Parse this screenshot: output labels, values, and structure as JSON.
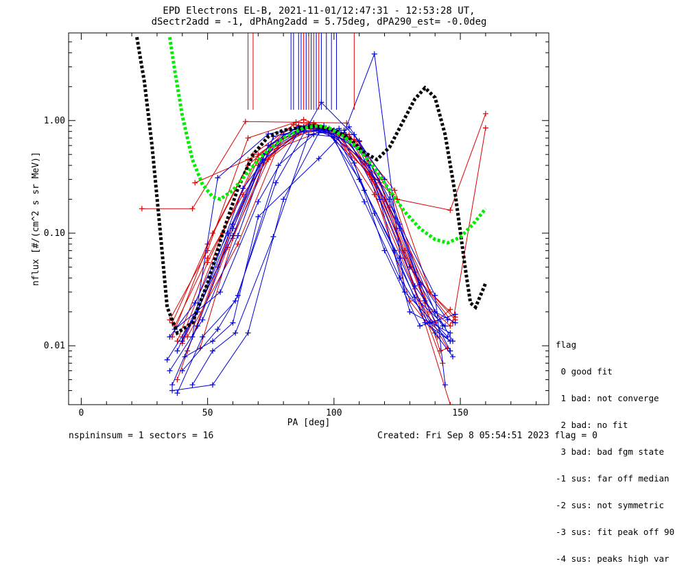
{
  "title_line1": "EPD Electrons EL-B, 2021-11-01/12:47:31 - 12:53:28 UT,",
  "title_line2": "dSectr2add = -1, dPhAng2add = 5.75deg, dPA290_est=  -0.0deg",
  "footer_left": "nspininsum =  1  sectors = 16",
  "footer_right": "Created: Fri Sep  8 05:54:51 2023   flag = 0",
  "legend": {
    "title": "flag",
    "items": [
      " 0 good fit",
      " 1 bad: not converge",
      " 2 bad: no fit",
      " 3 bad: bad fgm state",
      "-1 sus: far off median",
      "-2 sus: not symmetric",
      "-3 sus: fit peak off 90",
      "-4 sus: peaks high var"
    ]
  },
  "colors": {
    "red": "#dd0000",
    "blue": "#0000dd",
    "green": "#00ee00",
    "black": "#000000"
  },
  "chart_data": {
    "type": "line",
    "xlabel": "PA [deg]",
    "ylabel": "nflux [#/(cm^2 s sr MeV)]",
    "xlim": [
      -5,
      185
    ],
    "ylim": [
      0.003,
      6
    ],
    "yscale": "log",
    "xticks": [
      0,
      50,
      100,
      150
    ],
    "yticks": [
      0.01,
      0.1,
      1.0
    ],
    "ytick_labels": [
      "0.01",
      "0.10",
      "1.00"
    ],
    "series": [
      {
        "color": "red",
        "x": [
          24,
          44,
          65,
          105
        ],
        "y": [
          0.165,
          0.165,
          0.98,
          0.95
        ]
      },
      {
        "color": "red",
        "x": [
          45,
          66,
          96,
          125,
          146,
          160
        ],
        "y": [
          0.28,
          0.45,
          0.82,
          0.2,
          0.16,
          1.15
        ]
      },
      {
        "color": "red",
        "x": [
          35,
          50,
          66,
          88,
          110,
          130,
          147,
          160
        ],
        "y": [
          0.017,
          0.07,
          0.7,
          1.02,
          0.65,
          0.05,
          0.016,
          0.86
        ]
      },
      {
        "color": "red",
        "x": [
          36,
          52,
          68,
          84,
          96,
          112,
          128,
          140,
          146
        ],
        "y": [
          0.012,
          0.1,
          0.5,
          0.92,
          0.85,
          0.43,
          0.07,
          0.016,
          0.021
        ]
      },
      {
        "color": "red",
        "x": [
          38,
          50,
          70,
          90,
          100,
          118,
          132,
          142,
          145
        ],
        "y": [
          0.011,
          0.055,
          0.45,
          0.88,
          0.82,
          0.28,
          0.045,
          0.009,
          0.0095
        ]
      },
      {
        "color": "red",
        "x": [
          40,
          54,
          70,
          88,
          102,
          118,
          132,
          143
        ],
        "y": [
          0.0105,
          0.05,
          0.4,
          0.85,
          0.78,
          0.3,
          0.032,
          0.007
        ]
      },
      {
        "color": "red",
        "x": [
          42,
          58,
          74,
          92,
          104,
          120,
          136,
          146
        ],
        "y": [
          0.009,
          0.075,
          0.45,
          0.95,
          0.75,
          0.2,
          0.024,
          0.015
        ]
      },
      {
        "color": "red",
        "x": [
          47,
          60,
          75,
          90,
          106,
          122,
          138,
          148
        ],
        "y": [
          0.0095,
          0.09,
          0.58,
          0.94,
          0.72,
          0.17,
          0.03,
          0.017
        ]
      },
      {
        "color": "red",
        "x": [
          38,
          60,
          72,
          88,
          100,
          116,
          134,
          145
        ],
        "y": [
          0.005,
          0.12,
          0.42,
          0.88,
          0.8,
          0.22,
          0.025,
          0.0095
        ]
      },
      {
        "color": "red",
        "x": [
          36,
          50,
          66,
          85,
          98,
          114,
          130,
          141
        ],
        "y": [
          0.016,
          0.08,
          0.4,
          0.97,
          0.85,
          0.33,
          0.025,
          0.012
        ]
      },
      {
        "color": "red",
        "x": [
          40,
          56,
          70,
          86,
          100,
          115,
          128,
          146
        ],
        "y": [
          0.012,
          0.1,
          0.5,
          0.9,
          0.82,
          0.3,
          0.06,
          0.003
        ]
      },
      {
        "color": "red",
        "x": [
          37,
          50,
          64,
          80,
          94,
          108,
          124,
          138,
          148
        ],
        "y": [
          0.015,
          0.06,
          0.22,
          0.7,
          0.82,
          0.68,
          0.24,
          0.03,
          0.018
        ]
      },
      {
        "color": "red",
        "x": [
          42,
          62,
          78,
          92,
          106,
          123,
          138
        ],
        "y": [
          0.012,
          0.08,
          0.6,
          0.85,
          0.75,
          0.22,
          0.02
        ]
      },
      {
        "color": "blue",
        "x": [
          34,
          46,
          60,
          74,
          90,
          100,
          112,
          126,
          140,
          147
        ],
        "y": [
          0.0075,
          0.02,
          0.12,
          0.6,
          0.9,
          0.7,
          0.19,
          0.04,
          0.013,
          0.008
        ]
      },
      {
        "color": "blue",
        "x": [
          35,
          48,
          62,
          76,
          92,
          104,
          116,
          132,
          144
        ],
        "y": [
          0.006,
          0.017,
          0.095,
          0.72,
          0.88,
          0.68,
          0.15,
          0.027,
          0.015
        ]
      },
      {
        "color": "blue",
        "x": [
          36,
          46,
          60,
          72,
          88,
          98,
          110,
          124,
          136,
          146
        ],
        "y": [
          0.0045,
          0.015,
          0.11,
          0.45,
          0.82,
          0.78,
          0.3,
          0.07,
          0.016,
          0.011
        ]
      },
      {
        "color": "blue",
        "x": [
          36,
          52,
          66,
          80,
          94,
          108,
          122,
          136,
          146
        ],
        "y": [
          0.004,
          0.0045,
          0.013,
          0.2,
          0.78,
          0.75,
          0.2,
          0.025,
          0.009
        ]
      },
      {
        "color": "blue",
        "x": [
          38,
          48,
          61,
          77,
          95,
          110,
          126,
          140,
          144
        ],
        "y": [
          0.0038,
          0.012,
          0.025,
          0.28,
          1.45,
          0.66,
          0.12,
          0.028,
          0.0045
        ]
      },
      {
        "color": "blue",
        "x": [
          40,
          54,
          62,
          78,
          92,
          100,
          114,
          130,
          145
        ],
        "y": [
          0.006,
          0.014,
          0.028,
          0.4,
          0.75,
          0.72,
          0.4,
          0.05,
          0.017
        ]
      },
      {
        "color": "blue",
        "x": [
          41,
          52,
          60,
          70,
          94,
          106,
          120,
          134,
          147
        ],
        "y": [
          0.008,
          0.011,
          0.016,
          0.14,
          0.46,
          0.88,
          0.3,
          0.035,
          0.011
        ]
      },
      {
        "color": "blue",
        "x": [
          44,
          52,
          61,
          76,
          90,
          102,
          116,
          130,
          146
        ],
        "y": [
          0.0045,
          0.009,
          0.013,
          0.093,
          0.75,
          0.85,
          0.3,
          0.02,
          0.013
        ]
      },
      {
        "color": "blue",
        "x": [
          37,
          55,
          70,
          86,
          100,
          112,
          126,
          138,
          146
        ],
        "y": [
          0.014,
          0.03,
          0.19,
          0.8,
          0.82,
          0.24,
          0.06,
          0.016,
          0.011
        ]
      },
      {
        "color": "blue",
        "x": [
          44,
          54,
          74,
          88,
          104,
          116,
          128,
          145
        ],
        "y": [
          0.012,
          0.31,
          0.76,
          0.87,
          0.78,
          3.9,
          0.03,
          0.012
        ]
      },
      {
        "color": "blue",
        "x": [
          40,
          60,
          74,
          86,
          96,
          108,
          120,
          134,
          148
        ],
        "y": [
          0.011,
          0.095,
          0.6,
          0.88,
          0.9,
          0.42,
          0.07,
          0.015,
          0.019
        ]
      },
      {
        "color": "blue",
        "x": [
          35,
          45,
          58,
          72,
          88,
          104,
          118,
          132,
          143
        ],
        "y": [
          0.012,
          0.024,
          0.1,
          0.5,
          0.85,
          0.82,
          0.2,
          0.034,
          0.015
        ]
      },
      {
        "color": "blue",
        "x": [
          38,
          51,
          64,
          80,
          96,
          110,
          126,
          140,
          148
        ],
        "y": [
          0.009,
          0.04,
          0.25,
          0.75,
          0.84,
          0.55,
          0.11,
          0.02,
          0.016
        ]
      }
    ],
    "fit_curves": [
      {
        "color": "black",
        "style": "dashed",
        "x": [
          22,
          25,
          28,
          31,
          34,
          38,
          44,
          50,
          56,
          62,
          68,
          74,
          80,
          86,
          92,
          96,
          100,
          106,
          112,
          117,
          122,
          127,
          132,
          136,
          140,
          144,
          148,
          152,
          154,
          156,
          158,
          160
        ],
        "y": [
          5.5,
          2.2,
          0.6,
          0.12,
          0.022,
          0.013,
          0.016,
          0.036,
          0.1,
          0.25,
          0.5,
          0.72,
          0.82,
          0.86,
          0.9,
          0.86,
          0.82,
          0.7,
          0.52,
          0.45,
          0.58,
          0.95,
          1.55,
          1.95,
          1.6,
          0.75,
          0.22,
          0.048,
          0.024,
          0.022,
          0.028,
          0.036
        ]
      },
      {
        "color": "green",
        "style": "dashed",
        "x": [
          35,
          37,
          40,
          44,
          48,
          52,
          55,
          60,
          66,
          72,
          80,
          88,
          94,
          98,
          104,
          110,
          116,
          122,
          128,
          134,
          140,
          145,
          150,
          155,
          160
        ],
        "y": [
          5.5,
          2.8,
          1.1,
          0.45,
          0.27,
          0.21,
          0.2,
          0.24,
          0.35,
          0.5,
          0.7,
          0.86,
          0.9,
          0.86,
          0.72,
          0.55,
          0.38,
          0.24,
          0.155,
          0.11,
          0.088,
          0.082,
          0.092,
          0.12,
          0.165
        ]
      }
    ],
    "vertical_markers": [
      {
        "color": "red",
        "x": 66
      },
      {
        "color": "red",
        "x": 68
      },
      {
        "color": "blue",
        "x": 83
      },
      {
        "color": "blue",
        "x": 84
      },
      {
        "color": "blue",
        "x": 86
      },
      {
        "color": "blue",
        "x": 87
      },
      {
        "color": "red",
        "x": 88
      },
      {
        "color": "blue",
        "x": 89
      },
      {
        "color": "red",
        "x": 90
      },
      {
        "color": "blue",
        "x": 91
      },
      {
        "color": "red",
        "x": 92
      },
      {
        "color": "blue",
        "x": 93
      },
      {
        "color": "red",
        "x": 94
      },
      {
        "color": "blue",
        "x": 95
      },
      {
        "color": "blue",
        "x": 97
      },
      {
        "color": "blue",
        "x": 99
      },
      {
        "color": "blue",
        "x": 101
      },
      {
        "color": "red",
        "x": 108
      }
    ]
  }
}
